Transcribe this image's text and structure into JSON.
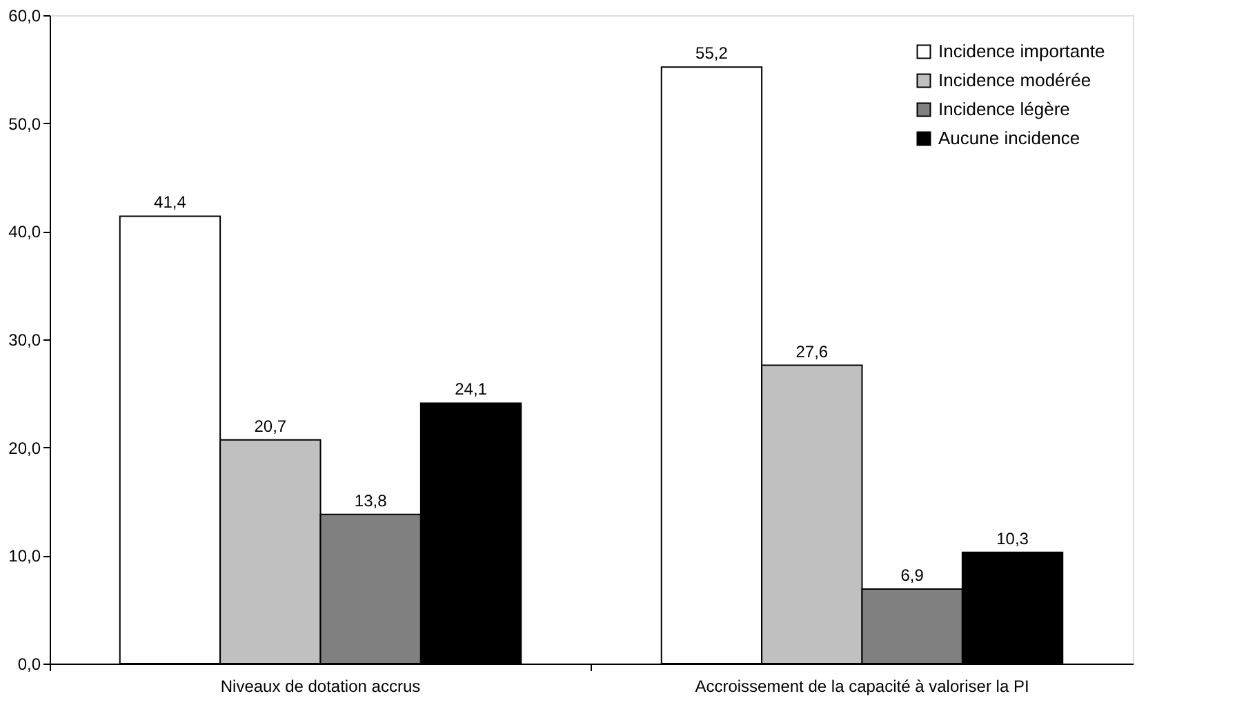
{
  "chart_data": {
    "type": "bar",
    "categories": [
      "Niveaux de dotation accrus",
      "Accroissement de la capacité à valoriser la PI"
    ],
    "series": [
      {
        "name": "Incidence importante",
        "color": "#ffffff",
        "values": [
          41.4,
          55.2
        ],
        "value_labels": [
          "41,4",
          "55,2"
        ]
      },
      {
        "name": "Incidence modérée",
        "color": "#c0c0c0",
        "values": [
          20.7,
          27.6
        ],
        "value_labels": [
          "20,7",
          "27,6"
        ]
      },
      {
        "name": "Incidence légère",
        "color": "#808080",
        "values": [
          13.8,
          6.9
        ],
        "value_labels": [
          "13,8",
          "6,9"
        ]
      },
      {
        "name": "Aucune incidence",
        "color": "#000000",
        "values": [
          24.1,
          10.3
        ],
        "value_labels": [
          "24,1",
          "10,3"
        ]
      }
    ],
    "ylim": [
      0,
      60
    ],
    "yticks": [
      {
        "value": 0,
        "label": "0,0"
      },
      {
        "value": 10,
        "label": "10,0"
      },
      {
        "value": 20,
        "label": "20,0"
      },
      {
        "value": 30,
        "label": "30,0"
      },
      {
        "value": 40,
        "label": "40,0"
      },
      {
        "value": 50,
        "label": "50,0"
      },
      {
        "value": 60,
        "label": "60,0"
      }
    ],
    "grid": false,
    "legend": "top right"
  }
}
